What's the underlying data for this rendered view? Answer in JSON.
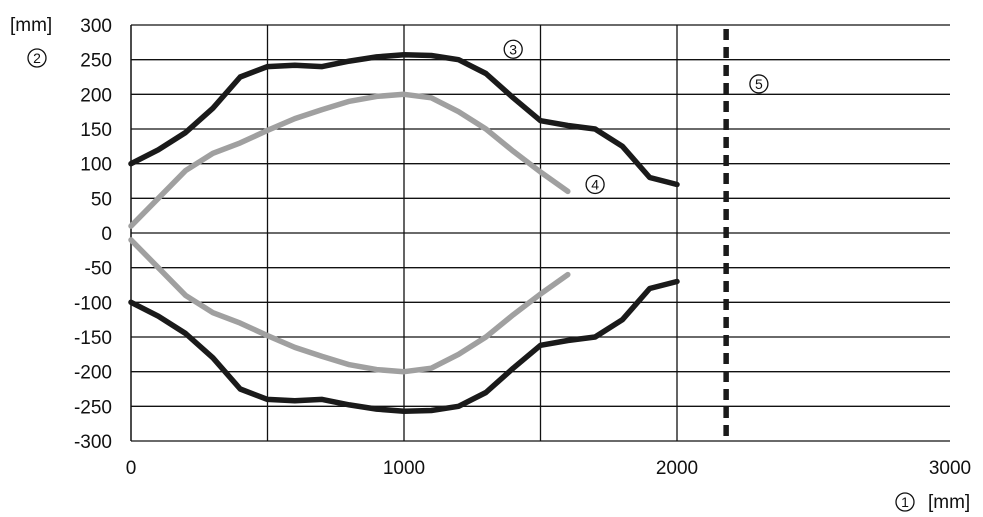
{
  "chart_data": {
    "type": "line",
    "title": "",
    "xlabel": {
      "callout": "1",
      "unit": "[mm]"
    },
    "ylabel": {
      "callout": "2",
      "unit": "[mm]"
    },
    "xlim": [
      0,
      3000
    ],
    "ylim": [
      -300,
      300
    ],
    "x_ticks": [
      {
        "value": 0,
        "label": "0"
      },
      {
        "value": 1000,
        "label": "1000"
      },
      {
        "value": 2000,
        "label": "2000"
      },
      {
        "value": 3000,
        "label": "3000"
      }
    ],
    "x_gridlines": [
      500,
      1000,
      1500,
      2000
    ],
    "y_ticks": [
      300,
      250,
      200,
      150,
      100,
      50,
      0,
      -50,
      -100,
      -150,
      -200,
      -250,
      -300
    ],
    "y_tick_labels": [
      "300",
      "250",
      "200",
      "150",
      "100",
      "50",
      "0",
      "-50",
      "-100",
      "-150",
      "-200",
      "-250",
      "-300"
    ],
    "grid": true,
    "series": [
      {
        "callout": "3",
        "color": "#1a1a1a",
        "points": [
          [
            0,
            100
          ],
          [
            100,
            120
          ],
          [
            200,
            145
          ],
          [
            300,
            180
          ],
          [
            400,
            225
          ],
          [
            500,
            240
          ],
          [
            600,
            242
          ],
          [
            700,
            240
          ],
          [
            800,
            248
          ],
          [
            900,
            254
          ],
          [
            1000,
            257
          ],
          [
            1100,
            256
          ],
          [
            1200,
            250
          ],
          [
            1300,
            230
          ],
          [
            1400,
            195
          ],
          [
            1500,
            162
          ],
          [
            1600,
            155
          ],
          [
            1700,
            150
          ],
          [
            1800,
            125
          ],
          [
            1900,
            80
          ],
          [
            2000,
            70
          ]
        ]
      },
      {
        "callout": "3",
        "color": "#1a1a1a",
        "points": [
          [
            0,
            -100
          ],
          [
            100,
            -120
          ],
          [
            200,
            -145
          ],
          [
            300,
            -180
          ],
          [
            400,
            -225
          ],
          [
            500,
            -240
          ],
          [
            600,
            -242
          ],
          [
            700,
            -240
          ],
          [
            800,
            -248
          ],
          [
            900,
            -254
          ],
          [
            1000,
            -257
          ],
          [
            1100,
            -256
          ],
          [
            1200,
            -250
          ],
          [
            1300,
            -230
          ],
          [
            1400,
            -195
          ],
          [
            1500,
            -162
          ],
          [
            1600,
            -155
          ],
          [
            1700,
            -150
          ],
          [
            1800,
            -125
          ],
          [
            1900,
            -80
          ],
          [
            2000,
            -70
          ]
        ]
      },
      {
        "callout": "4",
        "color": "#a0a0a0",
        "points": [
          [
            0,
            10
          ],
          [
            100,
            50
          ],
          [
            200,
            90
          ],
          [
            300,
            115
          ],
          [
            400,
            130
          ],
          [
            500,
            148
          ],
          [
            600,
            165
          ],
          [
            700,
            178
          ],
          [
            800,
            190
          ],
          [
            900,
            197
          ],
          [
            1000,
            200
          ],
          [
            1100,
            195
          ],
          [
            1200,
            175
          ],
          [
            1300,
            150
          ],
          [
            1400,
            118
          ],
          [
            1500,
            88
          ],
          [
            1600,
            60
          ]
        ]
      },
      {
        "callout": "4",
        "color": "#a0a0a0",
        "points": [
          [
            0,
            -10
          ],
          [
            100,
            -50
          ],
          [
            200,
            -90
          ],
          [
            300,
            -115
          ],
          [
            400,
            -130
          ],
          [
            500,
            -148
          ],
          [
            600,
            -165
          ],
          [
            700,
            -178
          ],
          [
            800,
            -190
          ],
          [
            900,
            -197
          ],
          [
            1000,
            -200
          ],
          [
            1100,
            -195
          ],
          [
            1200,
            -175
          ],
          [
            1300,
            -150
          ],
          [
            1400,
            -118
          ],
          [
            1500,
            -88
          ],
          [
            1600,
            -60
          ]
        ]
      }
    ],
    "reference_line": {
      "callout": "5",
      "x": 2180,
      "style": "dashed",
      "color": "#1a1a1a"
    },
    "annotations": [
      {
        "label": "3",
        "x": 1400,
        "y": 265
      },
      {
        "label": "4",
        "x": 1700,
        "y": 70
      },
      {
        "label": "5",
        "x": 2300,
        "y": 215
      }
    ]
  }
}
